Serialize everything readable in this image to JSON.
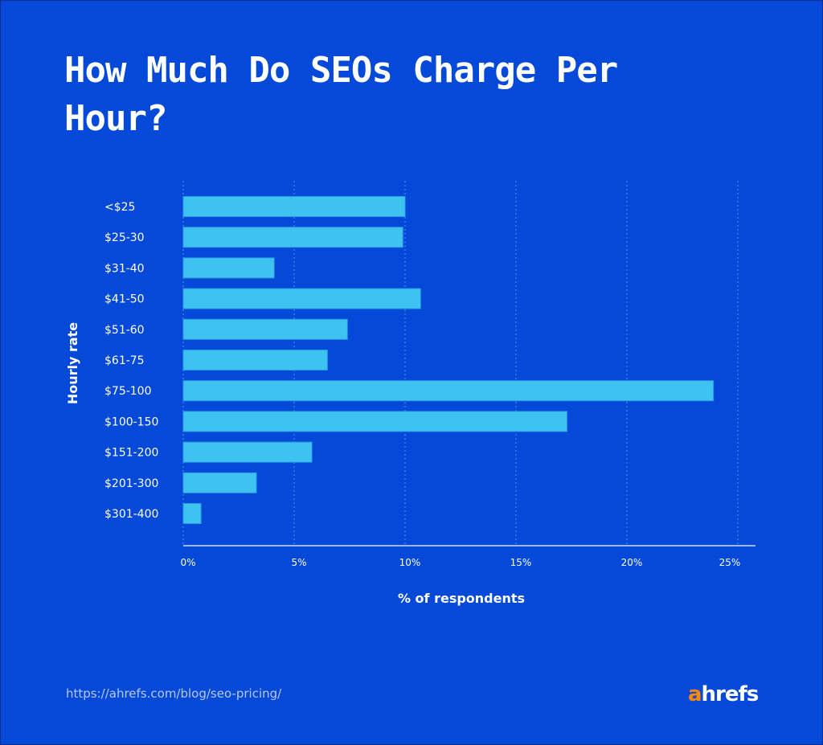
{
  "title": "How Much Do SEOs Charge Per Hour?",
  "footer": {
    "url": "https://ahrefs.com/blog/seo-pricing/",
    "logo": "ahrefs"
  },
  "colors": {
    "background": "#0549d9",
    "bar": "#3ec3f0",
    "logo_accent": "#ff8800"
  },
  "chart_data": {
    "type": "bar",
    "orientation": "horizontal",
    "title": "How Much Do SEOs Charge Per Hour?",
    "xlabel": "% of respondents",
    "ylabel": "Hourly rate",
    "xlim": [
      0,
      25
    ],
    "xticks": [
      "0%",
      "5%",
      "10%",
      "15%",
      "20%",
      "25%"
    ],
    "grid": true,
    "categories": [
      "<$25",
      "$25-30",
      "$31-40",
      "$41-50",
      "$51-60",
      "$61-75",
      "$75-100",
      "$100-150",
      "$151-200",
      "$201-300",
      "$301-400"
    ],
    "values": [
      10.0,
      9.9,
      4.1,
      10.7,
      7.4,
      6.5,
      23.9,
      17.3,
      5.8,
      3.3,
      0.8
    ]
  }
}
